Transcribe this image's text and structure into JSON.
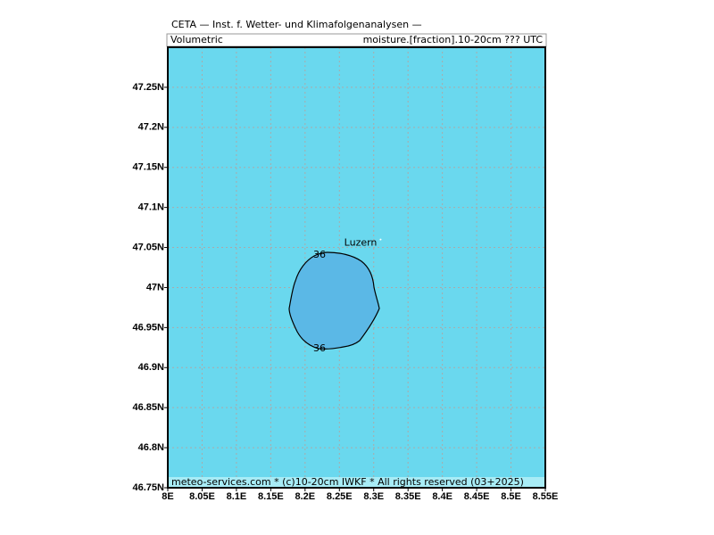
{
  "chart_data": {
    "type": "map",
    "title": "CETA — Inst. f. Wetter- und Klimafolgenanalysen —",
    "subtitle_left": "Volumetric",
    "subtitle_right": "moisture.[fraction].10-20cm ??? UTC",
    "footer": "meteo-services.com * (c)10-20cm IWKF * All rights reserved (03+2025)",
    "xlim": [
      8,
      8.55
    ],
    "ylim": [
      46.75,
      47.3
    ],
    "xticks": [
      {
        "value": 8,
        "label": "8E"
      },
      {
        "value": 8.05,
        "label": "8.05E"
      },
      {
        "value": 8.1,
        "label": "8.1E"
      },
      {
        "value": 8.15,
        "label": "8.15E"
      },
      {
        "value": 8.2,
        "label": "8.2E"
      },
      {
        "value": 8.25,
        "label": "8.25E"
      },
      {
        "value": 8.3,
        "label": "8.3E"
      },
      {
        "value": 8.35,
        "label": "8.35E"
      },
      {
        "value": 8.4,
        "label": "8.4E"
      },
      {
        "value": 8.45,
        "label": "8.45E"
      },
      {
        "value": 8.5,
        "label": "8.5E"
      },
      {
        "value": 8.55,
        "label": "8.55E"
      }
    ],
    "yticks": [
      {
        "value": 46.75,
        "label": "46.75N"
      },
      {
        "value": 46.8,
        "label": "46.8N"
      },
      {
        "value": 46.85,
        "label": "46.85N"
      },
      {
        "value": 46.9,
        "label": "46.9N"
      },
      {
        "value": 46.95,
        "label": "46.95N"
      },
      {
        "value": 47,
        "label": "47N"
      },
      {
        "value": 47.05,
        "label": "47.05N"
      },
      {
        "value": 47.1,
        "label": "47.1N"
      },
      {
        "value": 47.15,
        "label": "47.15N"
      },
      {
        "value": 47.2,
        "label": "47.2N"
      },
      {
        "value": 47.25,
        "label": "47.25N"
      }
    ],
    "grid": true,
    "contour_labels": [
      "36",
      "36"
    ],
    "city": {
      "name": "Luzern",
      "lon": 8.31,
      "lat": 47.06
    }
  }
}
